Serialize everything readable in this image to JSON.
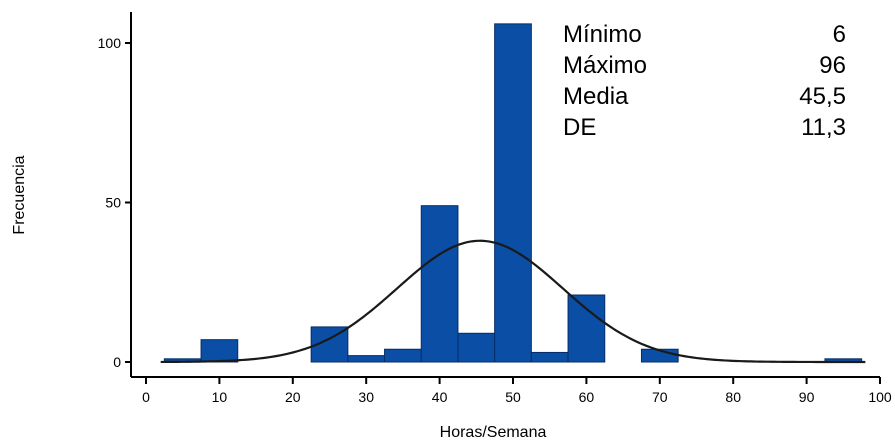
{
  "chart_data": {
    "type": "bar",
    "xlabel": "Horas/Semana",
    "ylabel": "Frecuencia",
    "xlim": [
      0,
      100
    ],
    "ylim": [
      -4,
      110
    ],
    "xticks": [
      0,
      10,
      20,
      30,
      40,
      50,
      60,
      70,
      80,
      90,
      100
    ],
    "yticks": [
      0,
      50,
      100
    ],
    "bin_width": 5,
    "bins": [
      {
        "x": 5,
        "value": 1
      },
      {
        "x": 10,
        "value": 7
      },
      {
        "x": 25,
        "value": 11
      },
      {
        "x": 30,
        "value": 2
      },
      {
        "x": 35,
        "value": 4
      },
      {
        "x": 40,
        "value": 49
      },
      {
        "x": 45,
        "value": 9
      },
      {
        "x": 50,
        "value": 106
      },
      {
        "x": 55,
        "value": 3
      },
      {
        "x": 60,
        "value": 21
      },
      {
        "x": 70,
        "value": 4
      },
      {
        "x": 95,
        "value": 1
      }
    ],
    "curve": {
      "type": "normal",
      "mean": 45.5,
      "sd": 11.3,
      "peak": 38,
      "x_from": 2,
      "x_to": 98
    },
    "bar_color": "#0a4ea5",
    "bar_edge_color": "#062d66",
    "curve_color": "#1a1a1a",
    "grid": false,
    "stats": [
      {
        "label": "Mínimo",
        "value": "6"
      },
      {
        "label": "Máximo",
        "value": "96"
      },
      {
        "label": "Media",
        "value": "45,5"
      },
      {
        "label": "DE",
        "value": "11,3"
      }
    ]
  }
}
